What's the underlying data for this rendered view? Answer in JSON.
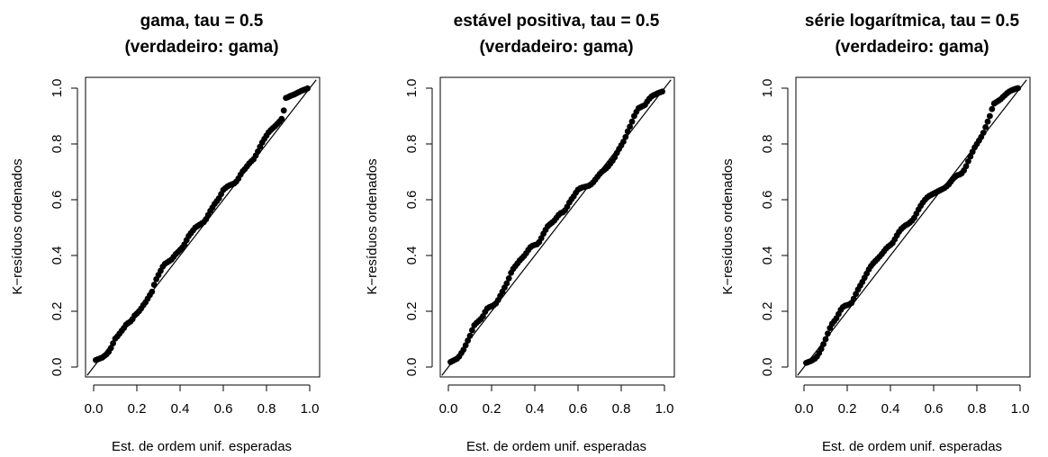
{
  "panels": [
    {
      "title_line1": "gama, tau = 0.5",
      "title_line2": "(verdadeiro: gama)",
      "xlabel": "Est. de ordem unif. esperadas",
      "ylabel": "K−resíduos ordenados"
    },
    {
      "title_line1": "estável positiva, tau = 0.5",
      "title_line2": "(verdadeiro: gama)",
      "xlabel": "Est. de ordem unif. esperadas",
      "ylabel": "K−resíduos ordenados"
    },
    {
      "title_line1": "série logarítmica, tau = 0.5",
      "title_line2": "(verdadeiro: gama)",
      "xlabel": "Est. de ordem unif. esperadas",
      "ylabel": "K−resíduos ordenados"
    }
  ],
  "chart_data": [
    {
      "type": "scatter",
      "title": "gama, tau = 0.5\n(verdadeiro: gama)",
      "xlabel": "Est. de ordem unif. esperadas",
      "ylabel": "K−resíduos ordenados",
      "xlim": [
        0,
        1
      ],
      "ylim": [
        0,
        1
      ],
      "xticks": [
        "0.0",
        "0.2",
        "0.4",
        "0.6",
        "0.8",
        "1.0"
      ],
      "yticks": [
        "0.0",
        "0.2",
        "0.4",
        "0.6",
        "0.8",
        "1.0"
      ],
      "reference_line": {
        "from": [
          0,
          0
        ],
        "to": [
          1,
          1
        ]
      },
      "point_color": "#000000",
      "x": [
        0.01,
        0.02,
        0.03,
        0.04,
        0.05,
        0.06,
        0.07,
        0.08,
        0.09,
        0.1,
        0.11,
        0.12,
        0.13,
        0.14,
        0.15,
        0.16,
        0.17,
        0.18,
        0.19,
        0.2,
        0.21,
        0.22,
        0.23,
        0.24,
        0.25,
        0.26,
        0.27,
        0.28,
        0.29,
        0.3,
        0.31,
        0.32,
        0.33,
        0.34,
        0.35,
        0.36,
        0.37,
        0.38,
        0.39,
        0.4,
        0.41,
        0.42,
        0.43,
        0.44,
        0.45,
        0.46,
        0.47,
        0.48,
        0.49,
        0.5,
        0.51,
        0.52,
        0.53,
        0.54,
        0.55,
        0.56,
        0.57,
        0.58,
        0.59,
        0.6,
        0.61,
        0.62,
        0.63,
        0.64,
        0.65,
        0.66,
        0.67,
        0.68,
        0.69,
        0.7,
        0.71,
        0.72,
        0.73,
        0.74,
        0.75,
        0.76,
        0.77,
        0.78,
        0.79,
        0.8,
        0.81,
        0.82,
        0.83,
        0.84,
        0.85,
        0.86,
        0.87,
        0.88,
        0.89,
        0.9,
        0.91,
        0.92,
        0.93,
        0.94,
        0.95,
        0.96,
        0.97,
        0.98,
        0.99
      ],
      "y": [
        0.025,
        0.028,
        0.031,
        0.034,
        0.04,
        0.046,
        0.055,
        0.068,
        0.085,
        0.102,
        0.11,
        0.12,
        0.13,
        0.14,
        0.152,
        0.158,
        0.163,
        0.172,
        0.185,
        0.192,
        0.2,
        0.21,
        0.222,
        0.232,
        0.245,
        0.258,
        0.27,
        0.295,
        0.315,
        0.33,
        0.345,
        0.36,
        0.37,
        0.375,
        0.38,
        0.385,
        0.395,
        0.405,
        0.412,
        0.42,
        0.428,
        0.44,
        0.455,
        0.47,
        0.48,
        0.49,
        0.5,
        0.505,
        0.51,
        0.515,
        0.52,
        0.53,
        0.545,
        0.56,
        0.572,
        0.585,
        0.595,
        0.605,
        0.62,
        0.635,
        0.642,
        0.648,
        0.652,
        0.655,
        0.658,
        0.665,
        0.676,
        0.69,
        0.702,
        0.71,
        0.72,
        0.73,
        0.738,
        0.745,
        0.758,
        0.773,
        0.79,
        0.805,
        0.818,
        0.83,
        0.842,
        0.85,
        0.857,
        0.864,
        0.872,
        0.88,
        0.89,
        0.92,
        0.965,
        0.968,
        0.972,
        0.975,
        0.978,
        0.982,
        0.986,
        0.99,
        0.993,
        0.996,
        0.999
      ]
    },
    {
      "type": "scatter",
      "title": "estável positiva, tau = 0.5\n(verdadeiro: gama)",
      "xlabel": "Est. de ordem unif. esperadas",
      "ylabel": "K−resíduos ordenados",
      "xlim": [
        0,
        1
      ],
      "ylim": [
        0,
        1
      ],
      "xticks": [
        "0.0",
        "0.2",
        "0.4",
        "0.6",
        "0.8",
        "1.0"
      ],
      "yticks": [
        "0.0",
        "0.2",
        "0.4",
        "0.6",
        "0.8",
        "1.0"
      ],
      "reference_line": {
        "from": [
          0,
          0
        ],
        "to": [
          1,
          1
        ]
      },
      "point_color": "#000000",
      "x": [
        0.01,
        0.02,
        0.03,
        0.04,
        0.05,
        0.06,
        0.07,
        0.08,
        0.09,
        0.1,
        0.11,
        0.12,
        0.13,
        0.14,
        0.15,
        0.16,
        0.17,
        0.18,
        0.19,
        0.2,
        0.21,
        0.22,
        0.23,
        0.24,
        0.25,
        0.26,
        0.27,
        0.28,
        0.29,
        0.3,
        0.31,
        0.32,
        0.33,
        0.34,
        0.35,
        0.36,
        0.37,
        0.38,
        0.39,
        0.4,
        0.41,
        0.42,
        0.43,
        0.44,
        0.45,
        0.46,
        0.47,
        0.48,
        0.49,
        0.5,
        0.51,
        0.52,
        0.53,
        0.54,
        0.55,
        0.56,
        0.57,
        0.58,
        0.59,
        0.6,
        0.61,
        0.62,
        0.63,
        0.64,
        0.65,
        0.66,
        0.67,
        0.68,
        0.69,
        0.7,
        0.71,
        0.72,
        0.73,
        0.74,
        0.75,
        0.76,
        0.77,
        0.78,
        0.79,
        0.8,
        0.81,
        0.82,
        0.83,
        0.84,
        0.85,
        0.86,
        0.87,
        0.88,
        0.89,
        0.9,
        0.91,
        0.92,
        0.93,
        0.94,
        0.95,
        0.96,
        0.97,
        0.98,
        0.99
      ],
      "y": [
        0.018,
        0.022,
        0.026,
        0.03,
        0.038,
        0.05,
        0.062,
        0.078,
        0.095,
        0.112,
        0.132,
        0.15,
        0.158,
        0.165,
        0.172,
        0.182,
        0.198,
        0.21,
        0.215,
        0.218,
        0.222,
        0.228,
        0.24,
        0.255,
        0.27,
        0.285,
        0.3,
        0.318,
        0.338,
        0.352,
        0.362,
        0.372,
        0.382,
        0.39,
        0.398,
        0.408,
        0.42,
        0.43,
        0.435,
        0.438,
        0.44,
        0.448,
        0.462,
        0.478,
        0.492,
        0.505,
        0.512,
        0.518,
        0.525,
        0.535,
        0.545,
        0.552,
        0.555,
        0.562,
        0.575,
        0.59,
        0.602,
        0.612,
        0.625,
        0.636,
        0.641,
        0.644,
        0.646,
        0.648,
        0.65,
        0.655,
        0.662,
        0.672,
        0.682,
        0.692,
        0.7,
        0.706,
        0.712,
        0.72,
        0.73,
        0.74,
        0.752,
        0.768,
        0.782,
        0.795,
        0.808,
        0.825,
        0.845,
        0.862,
        0.88,
        0.9,
        0.915,
        0.928,
        0.932,
        0.936,
        0.94,
        0.952,
        0.962,
        0.97,
        0.975,
        0.978,
        0.982,
        0.985,
        0.988
      ]
    },
    {
      "type": "scatter",
      "title": "série logarítmica, tau = 0.5\n(verdadeiro: gama)",
      "xlabel": "Est. de ordem unif. esperadas",
      "ylabel": "K−resíduos ordenados",
      "xlim": [
        0,
        1
      ],
      "ylim": [
        0,
        1
      ],
      "xticks": [
        "0.0",
        "0.2",
        "0.4",
        "0.6",
        "0.8",
        "1.0"
      ],
      "yticks": [
        "0.0",
        "0.2",
        "0.4",
        "0.6",
        "0.8",
        "1.0"
      ],
      "reference_line": {
        "from": [
          0,
          0
        ],
        "to": [
          1,
          1
        ]
      },
      "point_color": "#000000",
      "x": [
        0.01,
        0.02,
        0.03,
        0.04,
        0.05,
        0.06,
        0.07,
        0.08,
        0.09,
        0.1,
        0.11,
        0.12,
        0.13,
        0.14,
        0.15,
        0.16,
        0.17,
        0.18,
        0.19,
        0.2,
        0.21,
        0.22,
        0.23,
        0.24,
        0.25,
        0.26,
        0.27,
        0.28,
        0.29,
        0.3,
        0.31,
        0.32,
        0.33,
        0.34,
        0.35,
        0.36,
        0.37,
        0.38,
        0.39,
        0.4,
        0.41,
        0.42,
        0.43,
        0.44,
        0.45,
        0.46,
        0.47,
        0.48,
        0.49,
        0.5,
        0.51,
        0.52,
        0.53,
        0.54,
        0.55,
        0.56,
        0.57,
        0.58,
        0.59,
        0.6,
        0.61,
        0.62,
        0.63,
        0.64,
        0.65,
        0.66,
        0.67,
        0.68,
        0.69,
        0.7,
        0.71,
        0.72,
        0.73,
        0.74,
        0.75,
        0.76,
        0.77,
        0.78,
        0.79,
        0.8,
        0.81,
        0.82,
        0.83,
        0.84,
        0.85,
        0.86,
        0.87,
        0.88,
        0.89,
        0.9,
        0.91,
        0.92,
        0.93,
        0.94,
        0.95,
        0.96,
        0.97,
        0.98,
        0.99
      ],
      "y": [
        0.015,
        0.018,
        0.021,
        0.025,
        0.03,
        0.038,
        0.05,
        0.065,
        0.082,
        0.1,
        0.12,
        0.14,
        0.155,
        0.165,
        0.175,
        0.19,
        0.205,
        0.215,
        0.22,
        0.222,
        0.225,
        0.23,
        0.245,
        0.262,
        0.278,
        0.292,
        0.305,
        0.32,
        0.335,
        0.35,
        0.362,
        0.372,
        0.38,
        0.388,
        0.396,
        0.405,
        0.415,
        0.425,
        0.432,
        0.438,
        0.445,
        0.458,
        0.472,
        0.485,
        0.495,
        0.502,
        0.508,
        0.512,
        0.518,
        0.525,
        0.535,
        0.55,
        0.565,
        0.578,
        0.59,
        0.6,
        0.608,
        0.614,
        0.618,
        0.622,
        0.626,
        0.63,
        0.634,
        0.638,
        0.642,
        0.648,
        0.655,
        0.665,
        0.675,
        0.682,
        0.688,
        0.69,
        0.695,
        0.705,
        0.72,
        0.738,
        0.755,
        0.772,
        0.788,
        0.8,
        0.812,
        0.825,
        0.84,
        0.86,
        0.88,
        0.9,
        0.925,
        0.945,
        0.95,
        0.955,
        0.96,
        0.968,
        0.975,
        0.982,
        0.988,
        0.992,
        0.995,
        0.998,
        1.0
      ]
    }
  ]
}
